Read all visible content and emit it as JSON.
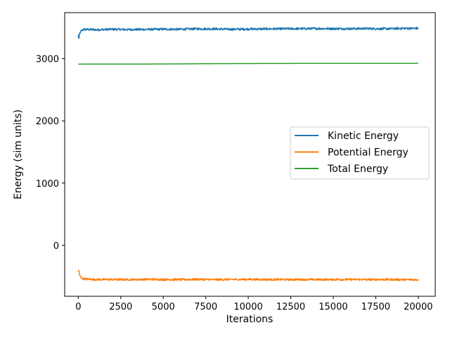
{
  "chart_data": {
    "type": "line",
    "title": "",
    "xlabel": "Iterations",
    "ylabel": "Energy (sim units)",
    "xlim": [
      -800,
      21000
    ],
    "ylim": [
      -820,
      3740
    ],
    "x_ticks": [
      0,
      2500,
      5000,
      7500,
      10000,
      12500,
      15000,
      17500,
      20000
    ],
    "y_ticks": [
      0,
      1000,
      2000,
      3000
    ],
    "grid": false,
    "legend_position": "center-right",
    "series": [
      {
        "name": "Kinetic Energy",
        "color": "#1f77b4",
        "x": [
          0,
          30,
          80,
          150,
          300,
          600,
          1000,
          2000,
          3000,
          4000,
          5000,
          6000,
          7000,
          8000,
          9000,
          10000,
          11000,
          12000,
          13000,
          14000,
          15000,
          16000,
          17000,
          18000,
          19000,
          20000
        ],
        "y": [
          3380,
          3310,
          3400,
          3440,
          3470,
          3470,
          3465,
          3472,
          3468,
          3470,
          3474,
          3472,
          3480,
          3478,
          3472,
          3476,
          3478,
          3480,
          3482,
          3484,
          3482,
          3482,
          3484,
          3480,
          3486,
          3488
        ],
        "noise": 18
      },
      {
        "name": "Potential Energy",
        "color": "#ff7f0e",
        "x": [
          0,
          30,
          80,
          150,
          300,
          600,
          1000,
          2000,
          3000,
          4000,
          5000,
          6000,
          7000,
          8000,
          9000,
          10000,
          11000,
          12000,
          13000,
          14000,
          15000,
          16000,
          17000,
          18000,
          19000,
          20000
        ],
        "y": [
          -430,
          -390,
          -480,
          -520,
          -540,
          -545,
          -550,
          -550,
          -552,
          -548,
          -550,
          -552,
          -548,
          -552,
          -550,
          -548,
          -550,
          -552,
          -550,
          -552,
          -550,
          -550,
          -552,
          -550,
          -552,
          -555
        ],
        "noise": 16
      },
      {
        "name": "Total Energy",
        "color": "#2ca02c",
        "x": [
          0,
          2000,
          4000,
          6000,
          7000,
          8000,
          10000,
          12000,
          14000,
          16000,
          18000,
          20000
        ],
        "y": [
          2912,
          2913,
          2914,
          2916,
          2918,
          2920,
          2922,
          2923,
          2924,
          2924,
          2925,
          2925
        ],
        "noise": 0
      }
    ]
  }
}
